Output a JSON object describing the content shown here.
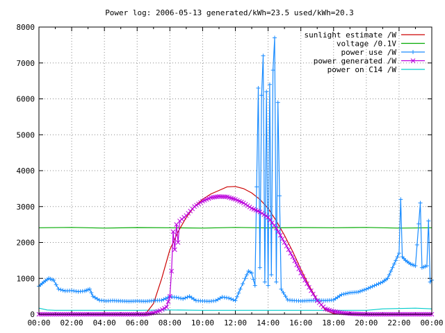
{
  "chart_data": {
    "type": "line",
    "title": "Power log: 2006-05-13 generated/kWh=23.5 used/kWh=20.3",
    "xlabel": "",
    "ylabel": "",
    "xlim": [
      "00:00",
      "24:00"
    ],
    "ylim": [
      0,
      8000
    ],
    "x_ticks": [
      "00:00",
      "02:00",
      "04:00",
      "06:00",
      "08:00",
      "10:00",
      "12:00",
      "14:00",
      "16:00",
      "18:00",
      "20:00",
      "22:00",
      "00:00"
    ],
    "y_ticks": [
      0,
      1000,
      2000,
      3000,
      4000,
      5000,
      6000,
      7000,
      8000
    ],
    "grid": true,
    "legend_position": "top-right",
    "series": [
      {
        "name": "sunlight estimate /W",
        "color": "#cc0000",
        "style": "line",
        "points": [
          [
            0,
            0
          ],
          [
            6.5,
            0
          ],
          [
            7.0,
            300
          ],
          [
            7.5,
            1000
          ],
          [
            8.0,
            1800
          ],
          [
            8.5,
            2300
          ],
          [
            9.0,
            2700
          ],
          [
            9.5,
            3000
          ],
          [
            10.0,
            3200
          ],
          [
            10.5,
            3350
          ],
          [
            11.0,
            3450
          ],
          [
            11.5,
            3550
          ],
          [
            12.0,
            3560
          ],
          [
            12.5,
            3500
          ],
          [
            13.0,
            3380
          ],
          [
            13.5,
            3200
          ],
          [
            14.0,
            2950
          ],
          [
            14.5,
            2600
          ],
          [
            15.0,
            2200
          ],
          [
            15.5,
            1750
          ],
          [
            16.0,
            1250
          ],
          [
            16.5,
            800
          ],
          [
            17.0,
            400
          ],
          [
            17.5,
            120
          ],
          [
            18.0,
            20
          ],
          [
            18.5,
            0
          ],
          [
            24,
            0
          ]
        ]
      },
      {
        "name": "voltage /0.1V",
        "color": "#00aa00",
        "style": "line",
        "points": [
          [
            0,
            2410
          ],
          [
            2,
            2420
          ],
          [
            4,
            2400
          ],
          [
            6,
            2415
          ],
          [
            8,
            2410
          ],
          [
            10,
            2400
          ],
          [
            12,
            2420
          ],
          [
            14,
            2405
          ],
          [
            16,
            2415
          ],
          [
            18,
            2410
          ],
          [
            20,
            2420
          ],
          [
            22,
            2400
          ],
          [
            24,
            2410
          ]
        ]
      },
      {
        "name": "power use /W",
        "color": "#1a8cff",
        "style": "linepoints",
        "marker": "plus",
        "points": [
          [
            0,
            780
          ],
          [
            0.3,
            900
          ],
          [
            0.6,
            1000
          ],
          [
            0.9,
            950
          ],
          [
            1.2,
            700
          ],
          [
            1.6,
            650
          ],
          [
            2.0,
            660
          ],
          [
            2.4,
            630
          ],
          [
            2.8,
            650
          ],
          [
            3.1,
            700
          ],
          [
            3.3,
            500
          ],
          [
            3.7,
            390
          ],
          [
            4.1,
            370
          ],
          [
            4.5,
            380
          ],
          [
            5.0,
            370
          ],
          [
            5.5,
            360
          ],
          [
            6.0,
            370
          ],
          [
            6.5,
            360
          ],
          [
            7.0,
            380
          ],
          [
            7.5,
            390
          ],
          [
            8.0,
            490
          ],
          [
            8.4,
            470
          ],
          [
            8.8,
            430
          ],
          [
            9.2,
            500
          ],
          [
            9.6,
            380
          ],
          [
            10.0,
            370
          ],
          [
            10.4,
            360
          ],
          [
            10.8,
            380
          ],
          [
            11.2,
            480
          ],
          [
            11.6,
            450
          ],
          [
            12.0,
            380
          ],
          [
            12.3,
            700
          ],
          [
            12.6,
            1000
          ],
          [
            12.8,
            1200
          ],
          [
            13.0,
            1150
          ],
          [
            13.2,
            800
          ],
          [
            13.4,
            6300
          ],
          [
            13.5,
            1300
          ],
          [
            13.6,
            6100
          ],
          [
            13.7,
            7200
          ],
          [
            13.8,
            900
          ],
          [
            13.9,
            6200
          ],
          [
            14.0,
            800
          ],
          [
            14.1,
            6400
          ],
          [
            14.2,
            1100
          ],
          [
            14.3,
            6800
          ],
          [
            14.4,
            7700
          ],
          [
            14.5,
            900
          ],
          [
            14.6,
            5900
          ],
          [
            14.8,
            700
          ],
          [
            15.2,
            400
          ],
          [
            15.6,
            380
          ],
          [
            16.0,
            370
          ],
          [
            16.5,
            380
          ],
          [
            17.0,
            390
          ],
          [
            17.5,
            380
          ],
          [
            18.0,
            400
          ],
          [
            18.5,
            550
          ],
          [
            19.0,
            600
          ],
          [
            19.5,
            620
          ],
          [
            20.0,
            700
          ],
          [
            20.5,
            800
          ],
          [
            21.0,
            900
          ],
          [
            21.3,
            1000
          ],
          [
            21.6,
            1300
          ],
          [
            21.8,
            1500
          ],
          [
            22.0,
            1700
          ],
          [
            22.1,
            3200
          ],
          [
            22.2,
            1600
          ],
          [
            22.4,
            1500
          ],
          [
            22.7,
            1400
          ],
          [
            23.0,
            1350
          ],
          [
            23.3,
            3100
          ],
          [
            23.4,
            1300
          ],
          [
            23.7,
            1350
          ],
          [
            23.8,
            2600
          ],
          [
            23.9,
            900
          ],
          [
            24,
            950
          ]
        ]
      },
      {
        "name": "power generated /W",
        "color": "#bb00dd",
        "style": "linepoints",
        "marker": "cross",
        "points": [
          [
            0,
            0
          ],
          [
            6.5,
            0
          ],
          [
            7.0,
            40
          ],
          [
            7.4,
            100
          ],
          [
            7.8,
            200
          ],
          [
            8.0,
            500
          ],
          [
            8.1,
            1200
          ],
          [
            8.2,
            2300
          ],
          [
            8.3,
            1800
          ],
          [
            8.4,
            2500
          ],
          [
            8.5,
            2000
          ],
          [
            8.6,
            2600
          ],
          [
            9.0,
            2750
          ],
          [
            9.5,
            3000
          ],
          [
            10.0,
            3150
          ],
          [
            10.5,
            3250
          ],
          [
            11.0,
            3280
          ],
          [
            11.5,
            3270
          ],
          [
            12.0,
            3200
          ],
          [
            12.5,
            3100
          ],
          [
            13.0,
            2950
          ],
          [
            13.5,
            2850
          ],
          [
            14.0,
            2700
          ],
          [
            14.5,
            2400
          ],
          [
            15.0,
            2000
          ],
          [
            15.5,
            1600
          ],
          [
            16.0,
            1150
          ],
          [
            16.5,
            750
          ],
          [
            17.0,
            380
          ],
          [
            17.5,
            150
          ],
          [
            18.0,
            80
          ],
          [
            18.5,
            40
          ],
          [
            19.0,
            20
          ],
          [
            20.0,
            0
          ],
          [
            24,
            0
          ]
        ]
      },
      {
        "name": "power on C14 /W",
        "color": "#00cccc",
        "style": "line",
        "points": [
          [
            0,
            170
          ],
          [
            0.5,
            120
          ],
          [
            1.0,
            110
          ],
          [
            2.0,
            110
          ],
          [
            4.0,
            110
          ],
          [
            6.0,
            110
          ],
          [
            8.0,
            120
          ],
          [
            10.0,
            110
          ],
          [
            12.0,
            110
          ],
          [
            14.0,
            110
          ],
          [
            16.0,
            110
          ],
          [
            18.0,
            110
          ],
          [
            20.0,
            110
          ],
          [
            20.5,
            130
          ],
          [
            21.0,
            150
          ],
          [
            22.0,
            160
          ],
          [
            23.0,
            170
          ],
          [
            24,
            150
          ]
        ]
      }
    ]
  }
}
